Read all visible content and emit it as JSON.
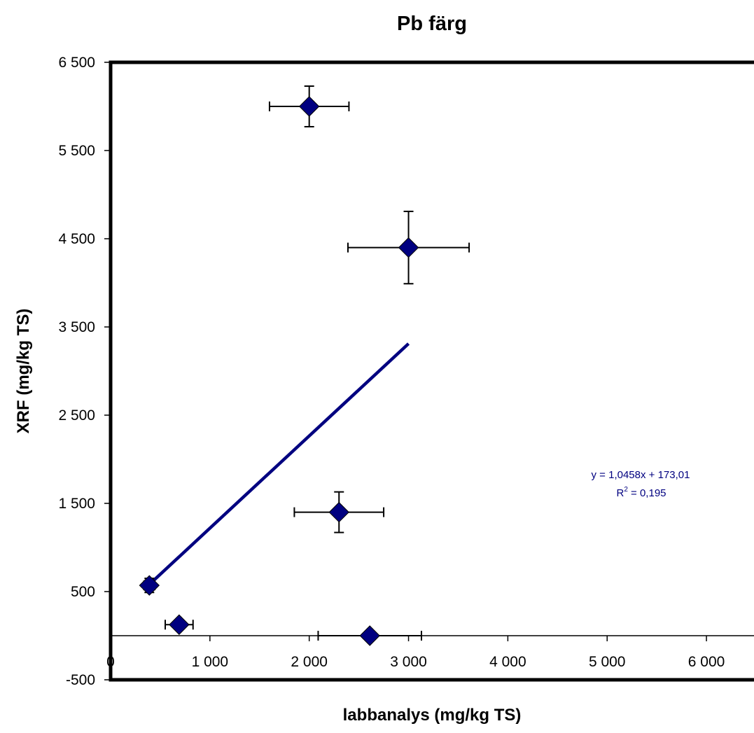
{
  "chart_data": {
    "type": "scatter",
    "title": "Pb färg",
    "xlabel": "labbanalys (mg/kg TS)",
    "ylabel": "XRF (mg/kg TS)",
    "xlim": [
      0,
      6500
    ],
    "ylim": [
      -500,
      6500
    ],
    "x_ticks": [
      0,
      1000,
      2000,
      3000,
      4000,
      5000,
      6000
    ],
    "x_tick_labels": [
      "0",
      "1 000",
      "2 000",
      "3 000",
      "4 000",
      "5 000",
      "6 000"
    ],
    "y_ticks": [
      -500,
      500,
      1500,
      2500,
      3500,
      4500,
      5500,
      6500
    ],
    "y_tick_labels": [
      "-500",
      "500",
      "1 500",
      "2 500",
      "3 500",
      "4 500",
      "5 500",
      "6 500"
    ],
    "grid": false,
    "legend": "none",
    "marker_color": "#000080",
    "trendline_color": "#000080",
    "series": [
      {
        "points": [
          {
            "x": 390,
            "y": 570,
            "xerr": 55,
            "yerr": 80
          },
          {
            "x": 690,
            "y": 125,
            "xerr": 140,
            "yerr": 0
          },
          {
            "x": 2000,
            "y": 6000,
            "xerr": 400,
            "yerr": 230
          },
          {
            "x": 3000,
            "y": 4400,
            "xerr": 610,
            "yerr": 410
          },
          {
            "x": 2300,
            "y": 1400,
            "xerr": 450,
            "yerr": 230
          },
          {
            "x": 2610,
            "y": 0,
            "xerr": 520,
            "yerr": 0
          }
        ]
      }
    ],
    "trendline": {
      "slope": 1.0458,
      "intercept": 173.01,
      "x_range": [
        390,
        3000
      ],
      "equation_label": "y = 1,0458x + 173,01",
      "r2_prefix": "R",
      "r2_exponent": "2",
      "r2_value": " = 0,195"
    }
  }
}
